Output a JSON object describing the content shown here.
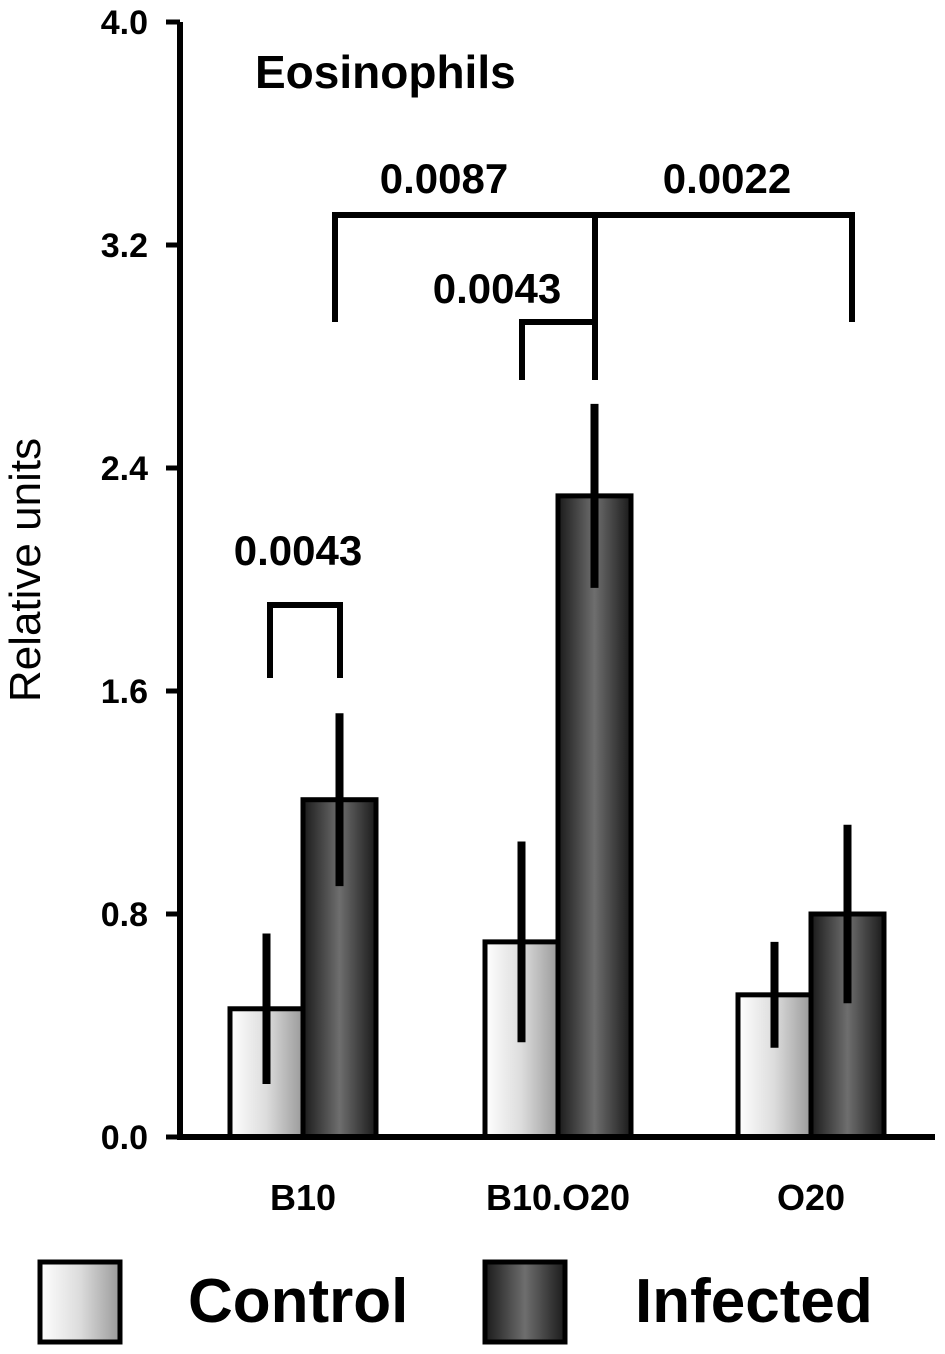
{
  "chart_data": {
    "type": "bar",
    "title": "Eosinophils",
    "ylabel": "Relative units",
    "xlabel": "",
    "ylim": [
      0,
      4.0
    ],
    "yticks": [
      "0.0",
      "0.8",
      "1.6",
      "2.4",
      "3.2",
      "4.0"
    ],
    "categories": [
      "B10",
      "B10.O20",
      "O20"
    ],
    "series": [
      {
        "name": "Control",
        "values": [
          0.46,
          0.7,
          0.51
        ],
        "errors": [
          0.27,
          0.36,
          0.19
        ],
        "color": "#e6e6e6"
      },
      {
        "name": "Infected",
        "values": [
          1.21,
          2.3,
          0.8
        ],
        "errors": [
          0.31,
          0.33,
          0.32
        ],
        "color": "#2e2e2e"
      }
    ],
    "legend_position": "bottom",
    "grid": false,
    "annotations": [
      {
        "text": "0.0043",
        "group1": [
          0,
          0
        ],
        "group2": [
          0,
          1
        ]
      },
      {
        "text": "0.0043",
        "group1": [
          1,
          0
        ],
        "group2": [
          1,
          1
        ]
      },
      {
        "text": "0.0087",
        "group1": [
          0,
          1
        ],
        "group2": [
          1,
          1
        ]
      },
      {
        "text": "0.0022",
        "group1": [
          1,
          1
        ],
        "group2": [
          2,
          1
        ]
      }
    ]
  }
}
